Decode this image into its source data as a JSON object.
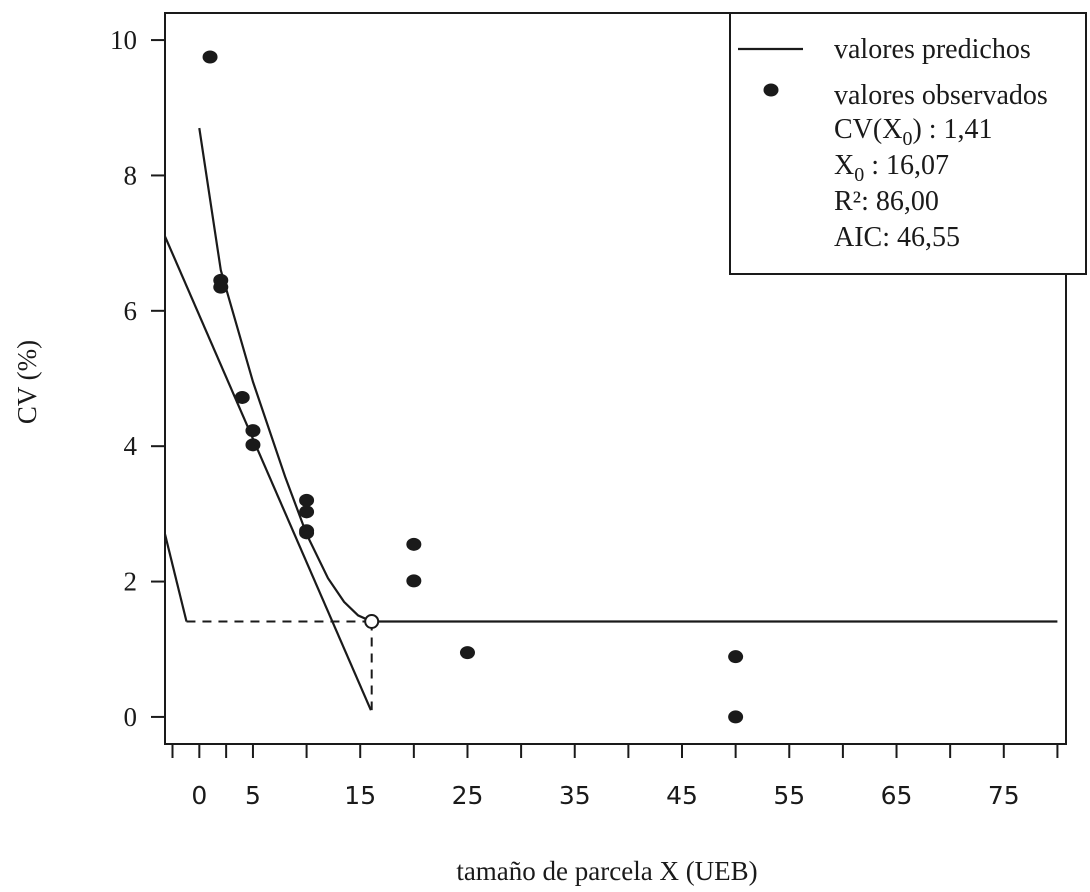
{
  "chart_data": {
    "type": "scatter",
    "title": "",
    "xlabel": "tamaño de parcela X (UEB)",
    "ylabel": "CV (%)",
    "xlim": [
      -3.2,
      80.8
    ],
    "ylim": [
      -0.4,
      10.4
    ],
    "x_ticks": [
      0,
      5,
      15,
      25,
      35,
      45,
      55,
      65,
      75
    ],
    "x_minor_ticks": [
      -2.5,
      2.5,
      10,
      20,
      30,
      40,
      50,
      60,
      70,
      80
    ],
    "y_ticks": [
      0,
      2,
      4,
      6,
      8,
      10
    ],
    "grid": false,
    "legend_position": "top-right",
    "series": [
      {
        "name": "valores observados",
        "kind": "points",
        "points": [
          [
            1,
            9.75
          ],
          [
            2,
            6.45
          ],
          [
            2,
            6.35
          ],
          [
            4,
            4.72
          ],
          [
            5,
            4.23
          ],
          [
            5,
            4.02
          ],
          [
            10,
            3.2
          ],
          [
            10,
            3.03
          ],
          [
            10,
            2.75
          ],
          [
            10,
            2.72
          ],
          [
            20,
            2.55
          ],
          [
            20,
            2.01
          ],
          [
            25,
            0.95
          ],
          [
            50,
            0.89
          ],
          [
            50,
            0.0
          ]
        ]
      },
      {
        "name": "valores predichos",
        "kind": "line",
        "segments": [
          [
            [
              0,
              8.7
            ],
            [
              2,
              6.6
            ],
            [
              5,
              4.95
            ],
            [
              8,
              3.55
            ],
            [
              10,
              2.7
            ],
            [
              12,
              2.05
            ],
            [
              13.5,
              1.7
            ],
            [
              14.8,
              1.5
            ],
            [
              16.07,
              1.41
            ],
            [
              80,
              1.41
            ]
          ],
          [
            [
              -3.2,
              7.1
            ],
            [
              16,
              0.1
            ]
          ],
          [
            [
              -3.2,
              2.7
            ],
            [
              -1.2,
              1.41
            ]
          ]
        ]
      },
      {
        "kind": "reference",
        "dashed": [
          [
            [
              -1.2,
              1.41
            ],
            [
              16.07,
              1.41
            ]
          ],
          [
            [
              16.07,
              1.41
            ],
            [
              16.07,
              0.1
            ]
          ]
        ],
        "open_point": [
          16.07,
          1.41
        ]
      }
    ],
    "legend": {
      "line_label": "valores predichos",
      "points_label": "valores observados",
      "stats": [
        {
          "label": "CV(X",
          "sub": "0",
          "tail": ") : 1,41"
        },
        {
          "label": "X",
          "sub": "0",
          "tail": " : 16,07"
        },
        {
          "label": "R²: 86,00",
          "sub": "",
          "tail": ""
        },
        {
          "label": "AIC: 46,55",
          "sub": "",
          "tail": ""
        }
      ]
    },
    "colors": {
      "ink": "#1a1a1a",
      "background": "#ffffff"
    }
  }
}
